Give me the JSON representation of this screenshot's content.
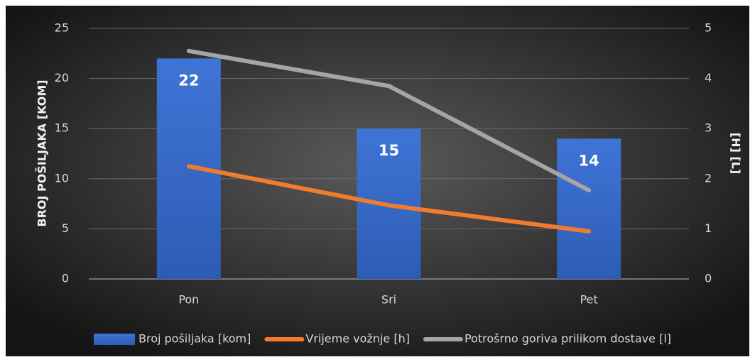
{
  "chart_data": {
    "type": "bar",
    "categories": [
      "Pon",
      "Sri",
      "Pet"
    ],
    "series": [
      {
        "name": "Broj pošiljaka [kom]",
        "type": "bar",
        "color": "#3a6fd0",
        "values": [
          22,
          15,
          14
        ]
      },
      {
        "name": "Vrijeme vožnje [h]",
        "type": "line",
        "axis": "y2",
        "color": "#f07c30",
        "values": [
          2.25,
          1.47,
          0.95
        ]
      },
      {
        "name": "Potrošrno goriva prilikom dostave [l]",
        "type": "line",
        "axis": "y2",
        "color": "#a5a5a5",
        "values": [
          4.55,
          3.85,
          1.77
        ]
      }
    ],
    "ylabel": "BROJ POŠILJAKA [KOM]",
    "y2label": "[H] [L]",
    "ylim": [
      0,
      25
    ],
    "yticks": [
      0,
      5,
      10,
      15,
      20,
      25
    ],
    "y2lim": [
      0,
      5
    ],
    "y2ticks": [
      0,
      1,
      2,
      3,
      4,
      5
    ],
    "grid": true,
    "legend": "bottom",
    "data_labels": true
  }
}
